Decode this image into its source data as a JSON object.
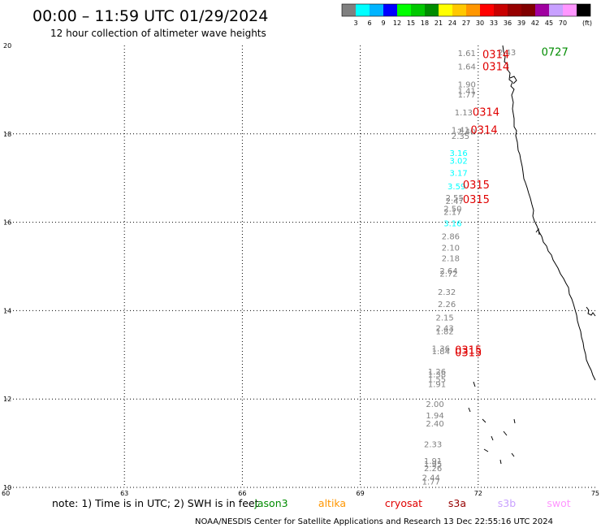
{
  "title": "00:00 – 11:59 UTC 01/29/2024",
  "subtitle": "12 hour collection of altimeter wave heights",
  "scale": {
    "colors": [
      "#808080",
      "#00ffff",
      "#00b4ff",
      "#0000ff",
      "#00ff00",
      "#00c800",
      "#008c00",
      "#ffff00",
      "#ffc800",
      "#ff9600",
      "#ff0000",
      "#c80000",
      "#960000",
      "#800000",
      "#a000a0",
      "#c8a0ff",
      "#ff96ff",
      "#000000"
    ],
    "labels": [
      "3",
      "6",
      "9",
      "12",
      "15",
      "18",
      "21",
      "24",
      "27",
      "30",
      "33",
      "36",
      "39",
      "42",
      "45",
      "70"
    ],
    "unit": "(ft)"
  },
  "chart_data": {
    "type": "scatter",
    "xlim": [
      60,
      75
    ],
    "ylim": [
      10,
      20
    ],
    "x_ticks": [
      "60",
      "63",
      "66",
      "69",
      "72",
      "75"
    ],
    "y_ticks": [
      "20",
      "18",
      "16",
      "14",
      "12",
      "10"
    ],
    "grid": true,
    "observations": [
      {
        "v": "1.61",
        "x": 71.71,
        "y": 19.83,
        "c": "#808080"
      },
      {
        "v": "2.43",
        "x": 72.73,
        "y": 19.85,
        "c": "#808080"
      },
      {
        "v": "1.64",
        "x": 71.71,
        "y": 19.53,
        "c": "#808080"
      },
      {
        "v": "1.90",
        "x": 71.71,
        "y": 19.13,
        "c": "#808080"
      },
      {
        "v": "1.41",
        "x": 71.71,
        "y": 18.98,
        "c": "#808080"
      },
      {
        "v": "1.77",
        "x": 71.71,
        "y": 18.9,
        "c": "#808080"
      },
      {
        "v": "1.13",
        "x": 71.63,
        "y": 18.49,
        "c": "#808080"
      },
      {
        "v": "1.41",
        "x": 71.55,
        "y": 18.1,
        "c": "#808080"
      },
      {
        "v": "2.40",
        "x": 71.7,
        "y": 18.06,
        "c": "#808080"
      },
      {
        "v": "2.35",
        "x": 71.55,
        "y": 17.96,
        "c": "#808080"
      },
      {
        "v": "3.16",
        "x": 71.5,
        "y": 17.57,
        "c": "#00ffff"
      },
      {
        "v": "3.02",
        "x": 71.5,
        "y": 17.4,
        "c": "#00ffff"
      },
      {
        "v": "3.17",
        "x": 71.5,
        "y": 17.12,
        "c": "#00ffff"
      },
      {
        "v": "3.59",
        "x": 71.45,
        "y": 16.82,
        "c": "#00ffff"
      },
      {
        "v": "2.55",
        "x": 71.4,
        "y": 16.56,
        "c": "#808080"
      },
      {
        "v": "2.47",
        "x": 71.4,
        "y": 16.49,
        "c": "#808080"
      },
      {
        "v": "2.50",
        "x": 71.35,
        "y": 16.31,
        "c": "#808080"
      },
      {
        "v": "2.17",
        "x": 71.35,
        "y": 16.24,
        "c": "#808080"
      },
      {
        "v": "3.16",
        "x": 71.35,
        "y": 15.98,
        "c": "#00ffff"
      },
      {
        "v": "2.86",
        "x": 71.3,
        "y": 15.69,
        "c": "#808080"
      },
      {
        "v": "2.10",
        "x": 71.3,
        "y": 15.43,
        "c": "#808080"
      },
      {
        "v": "2.18",
        "x": 71.3,
        "y": 15.19,
        "c": "#808080"
      },
      {
        "v": "2.64",
        "x": 71.25,
        "y": 14.91,
        "c": "#808080"
      },
      {
        "v": "2.72",
        "x": 71.25,
        "y": 14.84,
        "c": "#808080"
      },
      {
        "v": "2.32",
        "x": 71.2,
        "y": 14.43,
        "c": "#808080"
      },
      {
        "v": "2.26",
        "x": 71.2,
        "y": 14.15,
        "c": "#808080"
      },
      {
        "v": "2.15",
        "x": 71.15,
        "y": 13.85,
        "c": "#808080"
      },
      {
        "v": "2.43",
        "x": 71.15,
        "y": 13.61,
        "c": "#808080"
      },
      {
        "v": "1.82",
        "x": 71.15,
        "y": 13.54,
        "c": "#808080"
      },
      {
        "v": "1.36",
        "x": 71.05,
        "y": 13.15,
        "c": "#808080"
      },
      {
        "v": "1.84",
        "x": 71.05,
        "y": 13.09,
        "c": "#808080"
      },
      {
        "v": "1.26",
        "x": 70.95,
        "y": 12.63,
        "c": "#808080"
      },
      {
        "v": "1.38",
        "x": 70.95,
        "y": 12.56,
        "c": "#808080"
      },
      {
        "v": "1.55",
        "x": 70.95,
        "y": 12.45,
        "c": "#808080"
      },
      {
        "v": "1.91",
        "x": 70.95,
        "y": 12.34,
        "c": "#808080"
      },
      {
        "v": "2.00",
        "x": 70.9,
        "y": 11.89,
        "c": "#808080"
      },
      {
        "v": "1.94",
        "x": 70.9,
        "y": 11.64,
        "c": "#808080"
      },
      {
        "v": "2.40",
        "x": 70.9,
        "y": 11.45,
        "c": "#808080"
      },
      {
        "v": "2.33",
        "x": 70.85,
        "y": 10.98,
        "c": "#808080"
      },
      {
        "v": "1.91",
        "x": 70.85,
        "y": 10.61,
        "c": "#808080"
      },
      {
        "v": "1.95",
        "x": 70.85,
        "y": 10.53,
        "c": "#808080"
      },
      {
        "v": "2.26",
        "x": 70.85,
        "y": 10.44,
        "c": "#808080"
      },
      {
        "v": "2.44",
        "x": 70.8,
        "y": 10.23,
        "c": "#808080"
      },
      {
        "v": "1.77",
        "x": 70.8,
        "y": 10.14,
        "c": "#808080"
      }
    ],
    "passes": [
      {
        "t": "0314",
        "x": 72.45,
        "y": 19.81,
        "c": "#e00000"
      },
      {
        "t": "0727",
        "x": 73.95,
        "y": 19.86,
        "c": "#008c00"
      },
      {
        "t": "0314",
        "x": 72.45,
        "y": 19.53,
        "c": "#e00000"
      },
      {
        "t": "0314",
        "x": 72.2,
        "y": 18.5,
        "c": "#e00000"
      },
      {
        "t": "0314",
        "x": 72.15,
        "y": 18.1,
        "c": "#e00000"
      },
      {
        "t": "0315",
        "x": 71.95,
        "y": 16.86,
        "c": "#e00000"
      },
      {
        "t": "0315",
        "x": 71.95,
        "y": 16.53,
        "c": "#e00000"
      },
      {
        "t": "0315",
        "x": 71.75,
        "y": 13.12,
        "c": "#e00000"
      },
      {
        "t": "0315",
        "x": 71.75,
        "y": 13.06,
        "c": "#e00000"
      }
    ]
  },
  "footer": {
    "note": "note: 1) Time is in UTC; 2) SWH is in feet",
    "satellites": [
      {
        "name": "jason3",
        "color": "#008c00"
      },
      {
        "name": "altika",
        "color": "#ff9600"
      },
      {
        "name": "cryosat",
        "color": "#e00000"
      },
      {
        "name": "s3a",
        "color": "#960000"
      },
      {
        "name": "s3b",
        "color": "#c8a0ff"
      },
      {
        "name": "swot",
        "color": "#ff96ff"
      }
    ],
    "credit": "NOAA/NESDIS Center for Satellite Applications and Research   13 Dec 22:55:16 UTC 2024"
  }
}
